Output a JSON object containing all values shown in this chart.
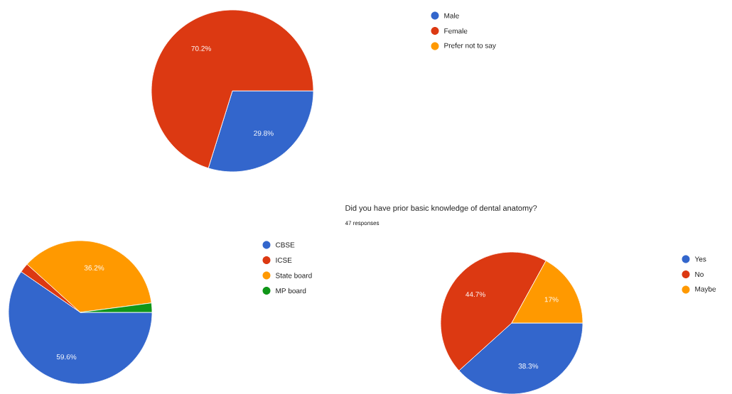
{
  "chart_data": [
    {
      "type": "pie",
      "categories": [
        "Male",
        "Female",
        "Prefer not to say"
      ],
      "values": [
        29.8,
        70.2,
        0
      ],
      "colors": [
        "#3366cc",
        "#dc3912",
        "#ff9900"
      ],
      "value_labels": [
        "29.8%",
        "70.2%",
        null
      ],
      "legend": "right"
    },
    {
      "type": "pie",
      "categories": [
        "CBSE",
        "ICSE",
        "State board",
        "MP board"
      ],
      "values": [
        59.6,
        2.1,
        36.2,
        2.1
      ],
      "colors": [
        "#3366cc",
        "#dc3912",
        "#ff9900",
        "#109618"
      ],
      "value_labels": [
        "59.6%",
        null,
        "36.2%",
        null
      ],
      "legend": "right"
    },
    {
      "type": "pie",
      "title": "Did you have prior basic knowledge of dental anatomy?",
      "subtitle": "47 responses",
      "categories": [
        "Yes",
        "No",
        "Maybe"
      ],
      "values": [
        38.3,
        44.7,
        17
      ],
      "colors": [
        "#3366cc",
        "#dc3912",
        "#ff9900"
      ],
      "value_labels": [
        "38.3%",
        "44.7%",
        "17%"
      ],
      "legend": "right"
    }
  ]
}
